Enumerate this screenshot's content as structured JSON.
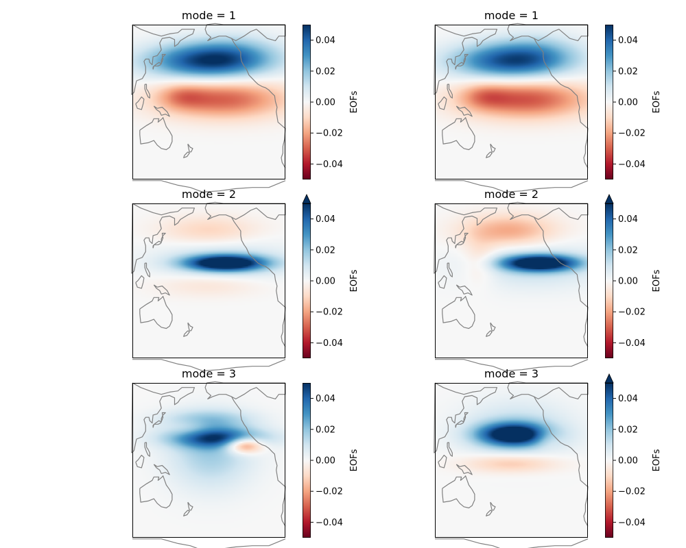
{
  "chart_data": {
    "type": "heatmap",
    "colormap": "RdBu",
    "vmin": -0.05,
    "vmax": 0.05,
    "coastline_color": "#808080",
    "panels": [
      {
        "title": "mode = 1",
        "colorbar_label": "EOFs",
        "colorbar_ticks": [
          "0.04",
          "0.02",
          "0.00",
          "−0.02",
          "−0.04"
        ],
        "colorbar_extend": "neither",
        "features": [
          {
            "lon": 195,
            "lat": 38,
            "sx": 52,
            "sy": 11,
            "v": 0.045
          },
          {
            "lon": 230,
            "lat": 46,
            "sx": 40,
            "sy": 12,
            "v": 0.012
          },
          {
            "lon": 215,
            "lat": 5,
            "sx": 55,
            "sy": 12,
            "v": -0.03
          },
          {
            "lon": 165,
            "lat": 8,
            "sx": 20,
            "sy": 8,
            "v": -0.012
          }
        ]
      },
      {
        "title": "mode = 1",
        "colorbar_label": "EOFs",
        "colorbar_ticks": [
          "0.04",
          "0.02",
          "0.00",
          "−0.02",
          "−0.04"
        ],
        "colorbar_extend": "neither",
        "features": [
          {
            "lon": 195,
            "lat": 38,
            "sx": 50,
            "sy": 11,
            "v": 0.042
          },
          {
            "lon": 230,
            "lat": 47,
            "sx": 38,
            "sy": 12,
            "v": 0.012
          },
          {
            "lon": 215,
            "lat": 5,
            "sx": 55,
            "sy": 12,
            "v": -0.032
          },
          {
            "lon": 165,
            "lat": 8,
            "sx": 20,
            "sy": 8,
            "v": -0.012
          }
        ]
      },
      {
        "title": "mode = 2",
        "colorbar_label": "EOFs",
        "colorbar_ticks": [
          "0.04",
          "0.02",
          "0.00",
          "−0.02",
          "−0.04"
        ],
        "colorbar_extend": "max",
        "features": [
          {
            "lon": 218,
            "lat": 18,
            "sx": 34,
            "sy": 5,
            "v": 0.06
          },
          {
            "lon": 215,
            "lat": 18,
            "sx": 58,
            "sy": 14,
            "v": 0.012
          },
          {
            "lon": 198,
            "lat": 46,
            "sx": 42,
            "sy": 9,
            "v": -0.012
          },
          {
            "lon": 200,
            "lat": 0,
            "sx": 48,
            "sy": 8,
            "v": -0.01
          }
        ]
      },
      {
        "title": "mode = 2",
        "colorbar_label": "EOFs",
        "colorbar_ticks": [
          "0.04",
          "0.02",
          "0.00",
          "−0.02",
          "−0.04"
        ],
        "colorbar_extend": "max",
        "features": [
          {
            "lon": 232,
            "lat": 18,
            "sx": 32,
            "sy": 5,
            "v": 0.06
          },
          {
            "lon": 225,
            "lat": 16,
            "sx": 58,
            "sy": 14,
            "v": 0.012
          },
          {
            "lon": 195,
            "lat": 46,
            "sx": 40,
            "sy": 10,
            "v": -0.02
          },
          {
            "lon": 160,
            "lat": 20,
            "sx": 15,
            "sy": 14,
            "v": -0.01
          }
        ]
      },
      {
        "title": "mode = 3",
        "colorbar_label": "EOFs",
        "colorbar_ticks": [
          "0.04",
          "0.02",
          "0.00",
          "−0.02",
          "−0.04"
        ],
        "colorbar_extend": "neither",
        "features": [
          {
            "lon": 208,
            "lat": 22,
            "sx": 42,
            "sy": 6,
            "v": 0.038
          },
          {
            "lon": 200,
            "lat": 10,
            "sx": 35,
            "sy": 22,
            "v": 0.018
          },
          {
            "lon": 240,
            "lat": 16,
            "sx": 16,
            "sy": 5,
            "v": -0.038
          },
          {
            "lon": 195,
            "lat": 38,
            "sx": 40,
            "sy": 6,
            "v": 0.015
          },
          {
            "lon": 175,
            "lat": 30,
            "sx": 18,
            "sy": 6,
            "v": -0.008
          }
        ]
      },
      {
        "title": "mode = 3",
        "colorbar_label": "EOFs",
        "colorbar_ticks": [
          "0.04",
          "0.02",
          "0.00",
          "−0.02",
          "−0.04"
        ],
        "colorbar_extend": "max",
        "features": [
          {
            "lon": 200,
            "lat": 25,
            "sx": 30,
            "sy": 7,
            "v": 0.055
          },
          {
            "lon": 205,
            "lat": 28,
            "sx": 46,
            "sy": 18,
            "v": 0.014
          },
          {
            "lon": 198,
            "lat": 0,
            "sx": 40,
            "sy": 6,
            "v": -0.016
          },
          {
            "lon": 240,
            "lat": 22,
            "sx": 12,
            "sy": 6,
            "v": -0.01
          }
        ]
      }
    ]
  }
}
